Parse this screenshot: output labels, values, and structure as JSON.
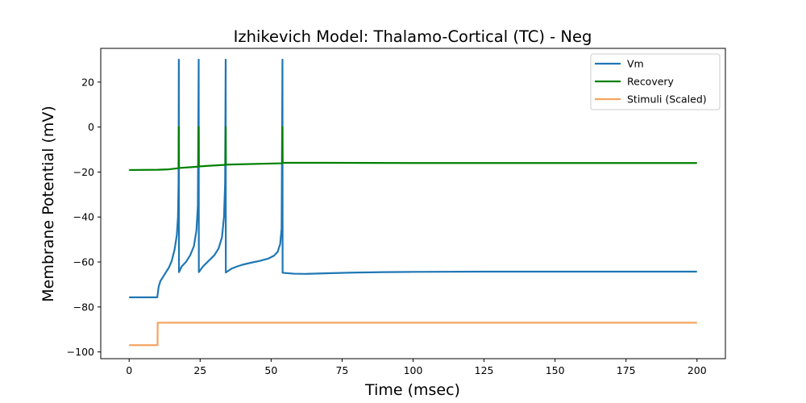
{
  "chart_data": {
    "type": "line",
    "title": "Izhikevich Model: Thalamo-Cortical (TC) - Neg",
    "xlabel": "Time (msec)",
    "ylabel": "Membrane Potential (mV)",
    "xlim": [
      -10,
      210
    ],
    "ylim": [
      -103,
      35
    ],
    "x_ticks": [
      0,
      25,
      50,
      75,
      100,
      125,
      150,
      175,
      200
    ],
    "y_ticks": [
      -100,
      -80,
      -60,
      -40,
      -20,
      0,
      20
    ],
    "legend_position": "top-right",
    "grid": false,
    "series": [
      {
        "name": "Vm",
        "color": "#1f77b4",
        "points": [
          [
            0,
            -75.7
          ],
          [
            9.9,
            -75.7
          ],
          [
            10.4,
            -71
          ],
          [
            11,
            -68.5
          ],
          [
            12,
            -66.5
          ],
          [
            13,
            -64.5
          ],
          [
            14,
            -62.5
          ],
          [
            15,
            -59.5
          ],
          [
            16,
            -54.5
          ],
          [
            16.8,
            -48
          ],
          [
            17.2,
            -40
          ],
          [
            17.4,
            -25
          ],
          [
            17.5,
            30
          ],
          [
            17.55,
            -64.5
          ],
          [
            18.5,
            -62
          ],
          [
            20,
            -60
          ],
          [
            21.5,
            -57
          ],
          [
            22.8,
            -53
          ],
          [
            23.7,
            -46
          ],
          [
            24.2,
            -35
          ],
          [
            24.5,
            30
          ],
          [
            24.55,
            -64.5
          ],
          [
            26,
            -62
          ],
          [
            28,
            -59.5
          ],
          [
            30,
            -57
          ],
          [
            31.5,
            -54
          ],
          [
            32.7,
            -49
          ],
          [
            33.4,
            -40
          ],
          [
            33.8,
            -25
          ],
          [
            34,
            30
          ],
          [
            34.05,
            -64.7
          ],
          [
            36,
            -63
          ],
          [
            38,
            -62
          ],
          [
            40,
            -61.2
          ],
          [
            43,
            -60.3
          ],
          [
            46,
            -59.5
          ],
          [
            49,
            -58.5
          ],
          [
            51,
            -57.2
          ],
          [
            52.3,
            -55.5
          ],
          [
            53.2,
            -52
          ],
          [
            53.7,
            -45
          ],
          [
            54,
            30
          ],
          [
            54.05,
            -64.8
          ],
          [
            58,
            -65.2
          ],
          [
            62,
            -65.3
          ],
          [
            70,
            -65
          ],
          [
            80,
            -64.7
          ],
          [
            90,
            -64.5
          ],
          [
            100,
            -64.4
          ],
          [
            125,
            -64.3
          ],
          [
            150,
            -64.3
          ],
          [
            200,
            -64.3
          ]
        ]
      },
      {
        "name": "Recovery",
        "color": "#008000",
        "points": [
          [
            0,
            -19.1
          ],
          [
            10,
            -19
          ],
          [
            14,
            -18.8
          ],
          [
            17.4,
            -18.3
          ],
          [
            17.5,
            0
          ],
          [
            17.55,
            -18.2
          ],
          [
            24.4,
            -17.6
          ],
          [
            24.5,
            0
          ],
          [
            24.55,
            -17.5
          ],
          [
            33.9,
            -16.8
          ],
          [
            34,
            0
          ],
          [
            34.05,
            -16.7
          ],
          [
            53.9,
            -16.1
          ],
          [
            54,
            0
          ],
          [
            54.05,
            -15.9
          ],
          [
            70,
            -15.9
          ],
          [
            100,
            -16
          ],
          [
            150,
            -16
          ],
          [
            200,
            -16
          ]
        ]
      },
      {
        "name": "Stimuli (Scaled)",
        "color": "#f4a460",
        "points": [
          [
            0,
            -97
          ],
          [
            10,
            -97
          ],
          [
            10.05,
            -87
          ],
          [
            200,
            -87
          ]
        ]
      }
    ]
  }
}
